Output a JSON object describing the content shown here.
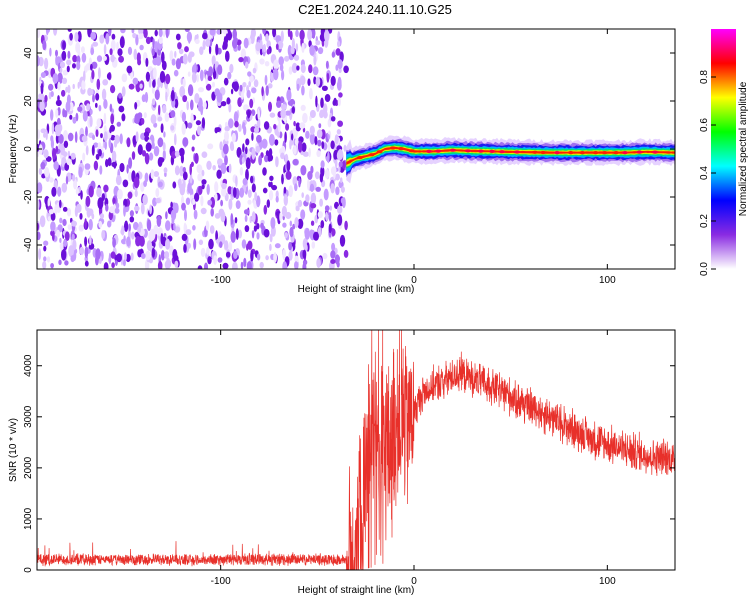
{
  "title": "C2E1.2024.240.11.10.G25",
  "chart_data": [
    {
      "type": "heatmap",
      "title": "C2E1.2024.240.11.10.G25",
      "xlabel": "Height of straight line (km)",
      "ylabel": "Frequency (Hz)",
      "xlim": [
        -195,
        135
      ],
      "ylim": [
        -50,
        50
      ],
      "xticks": [
        -100,
        0,
        100
      ],
      "yticks": [
        -40,
        -20,
        0,
        20,
        40
      ],
      "colorbar": {
        "label": "Normalized spectral amplitude",
        "range": [
          0.0,
          1.0
        ],
        "ticks": [
          0.0,
          0.2,
          0.4,
          0.6,
          0.8
        ],
        "colors": [
          "#ffffff",
          "#8a2be2",
          "#0000ff",
          "#00ffff",
          "#00ff00",
          "#ffff00",
          "#ff0000",
          "#ff00ff"
        ]
      },
      "noise_region_x": [
        -195,
        -35
      ],
      "signal_region_x": [
        -35,
        135
      ],
      "signal_trace": {
        "x": [
          -35,
          -30,
          -25,
          -20,
          -15,
          -10,
          -5,
          0,
          10,
          20,
          30,
          50,
          70,
          90,
          110,
          120,
          135
        ],
        "freq": [
          -6,
          -4,
          -3,
          -2,
          0,
          0.5,
          0,
          -1,
          -1,
          -0.5,
          -0.8,
          -1.2,
          -1.5,
          -1.5,
          -1.5,
          -1.2,
          -1.5
        ]
      }
    },
    {
      "type": "line",
      "xlabel": "Height of straight line (km)",
      "ylabel": "SNR (10 * v/v)",
      "xlim": [
        -195,
        135
      ],
      "ylim": [
        0,
        4700
      ],
      "xticks": [
        -100,
        0,
        100
      ],
      "yticks": [
        0,
        1000,
        2000,
        3000,
        4000
      ],
      "color": "#e8302a",
      "series": [
        {
          "x": [
            -195,
            -170,
            -150,
            -130,
            -110,
            -90,
            -70,
            -50,
            -35,
            -28,
            -24,
            -20,
            -16,
            -12,
            -8,
            -4,
            0,
            5,
            10,
            15,
            20,
            25,
            30,
            40,
            50,
            60,
            70,
            80,
            90,
            100,
            110,
            120,
            135
          ],
          "values": [
            200,
            210,
            200,
            205,
            195,
            210,
            200,
            205,
            200,
            900,
            2300,
            2800,
            2200,
            2600,
            3000,
            2900,
            3100,
            3500,
            3600,
            3700,
            3800,
            3850,
            3750,
            3600,
            3400,
            3200,
            3000,
            2800,
            2600,
            2450,
            2350,
            2250,
            2150
          ]
        }
      ]
    }
  ]
}
